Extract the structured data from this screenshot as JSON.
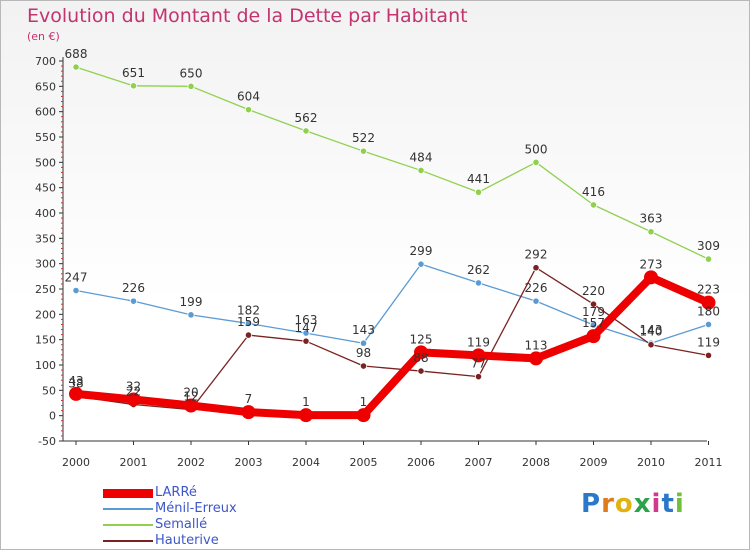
{
  "title": "Evolution du Montant de la Dette par Habitant",
  "unit": "(en €)",
  "logo": {
    "text": "Proxiti",
    "letter_colors": [
      "#2a78c8",
      "#e07a1a",
      "#e2b310",
      "#2aa34a",
      "#d13a8a",
      "#2a78c8",
      "#6fbf3a"
    ]
  },
  "chart_data": {
    "type": "line",
    "title": "Evolution du Montant de la Dette par Habitant",
    "ylabel": "(en €)",
    "xlabel": "",
    "x": [
      "2000",
      "2001",
      "2002",
      "2003",
      "2004",
      "2005",
      "2006",
      "2007",
      "2008",
      "2009",
      "2010",
      "2011"
    ],
    "ylim": [
      -50,
      700
    ],
    "yticks": [
      -50,
      0,
      50,
      100,
      150,
      200,
      250,
      300,
      350,
      400,
      450,
      500,
      550,
      600,
      650,
      700
    ],
    "grid": false,
    "legend_position": "bottom-left",
    "series": [
      {
        "name": "LARRé",
        "color": "#ee0000",
        "emphasis": true,
        "values": [
          43,
          32,
          20,
          7,
          1,
          1,
          125,
          119,
          113,
          157,
          273,
          223
        ],
        "labels": [
          "43",
          "32",
          "20",
          "7",
          "1",
          "1",
          "125",
          "119",
          "113",
          "157",
          "273",
          "223"
        ]
      },
      {
        "name": "Ménil-Erreux",
        "color": "#5b9bd5",
        "emphasis": false,
        "values": [
          247,
          226,
          199,
          182,
          163,
          143,
          299,
          262,
          226,
          179,
          143,
          180
        ],
        "labels": [
          "247",
          "226",
          "199",
          "182",
          "163",
          "143",
          "299",
          "262",
          "226",
          "179",
          "143",
          "180"
        ]
      },
      {
        "name": "Semallé",
        "color": "#8fd14f",
        "emphasis": false,
        "values": [
          688,
          651,
          650,
          604,
          562,
          522,
          484,
          441,
          500,
          416,
          363,
          309
        ],
        "labels": [
          "688",
          "651",
          "650",
          "604",
          "562",
          "522",
          "484",
          "441",
          "500",
          "416",
          "363",
          "309"
        ]
      },
      {
        "name": "Hauterive",
        "color": "#7a2222",
        "emphasis": false,
        "values": [
          38,
          22,
          12,
          159,
          147,
          98,
          88,
          77,
          292,
          220,
          140,
          119
        ],
        "labels": [
          "38",
          "22",
          "12",
          "159",
          "147",
          "98",
          "88",
          "77",
          "292",
          "220",
          "140",
          "119"
        ]
      }
    ]
  }
}
